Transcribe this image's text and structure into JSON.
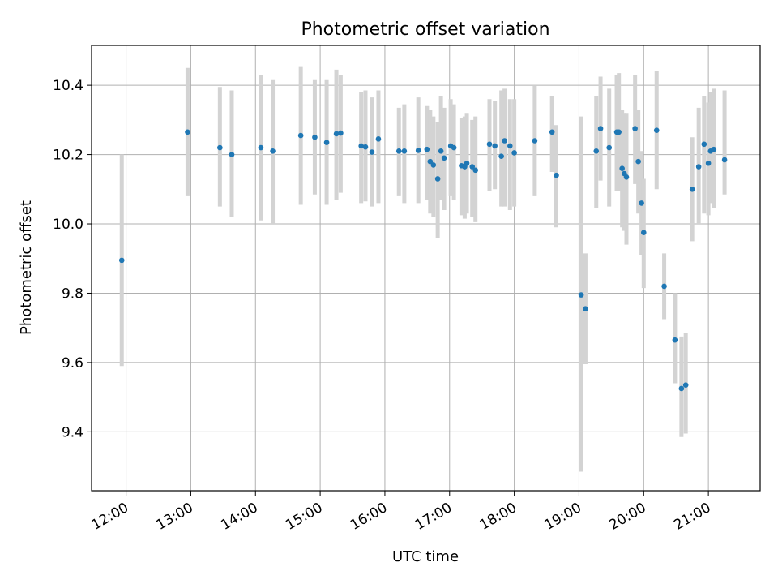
{
  "chart_data": {
    "type": "scatter",
    "title": "Photometric offset variation",
    "xlabel": "UTC time",
    "ylabel": "Photometric offset",
    "xlim": [
      "11:28",
      "21:48"
    ],
    "ylim": [
      9.23,
      10.515
    ],
    "x_ticks": [
      "12:00",
      "13:00",
      "14:00",
      "15:00",
      "16:00",
      "17:00",
      "18:00",
      "19:00",
      "20:00",
      "21:00"
    ],
    "y_ticks": [
      9.4,
      9.6,
      9.8,
      10.0,
      10.2,
      10.4
    ],
    "y_tick_labels": [
      "9.4",
      "9.6",
      "9.8",
      "10.0",
      "10.2",
      "10.4"
    ],
    "grid": true,
    "colors": {
      "marker": "#1f77b4",
      "errorbar": "#d3d3d3",
      "grid": "#b0b0b0"
    },
    "series": [
      {
        "marker": "point",
        "error_bars": "vertical",
        "x": [
          "11:56",
          "12:57",
          "13:27",
          "13:38",
          "14:05",
          "14:16",
          "14:42",
          "14:55",
          "15:06",
          "15:15",
          "15:19",
          "15:38",
          "15:42",
          "15:48",
          "15:54",
          "16:13",
          "16:18",
          "16:31",
          "16:39",
          "16:42",
          "16:45",
          "16:49",
          "16:52",
          "16:55",
          "17:01",
          "17:04",
          "17:11",
          "17:14",
          "17:16",
          "17:21",
          "17:24",
          "17:37",
          "17:42",
          "17:48",
          "17:51",
          "17:56",
          "18:00",
          "18:19",
          "18:35",
          "18:39",
          "19:02",
          "19:06",
          "19:16",
          "19:20",
          "19:28",
          "19:35",
          "19:37",
          "19:40",
          "19:42",
          "19:44",
          "19:52",
          "19:55",
          "19:58",
          "20:00",
          "20:12",
          "20:19",
          "20:29",
          "20:35",
          "20:39",
          "20:45",
          "20:51",
          "20:56",
          "21:00",
          "21:02",
          "21:05",
          "21:15"
        ],
        "y": [
          9.895,
          10.265,
          10.22,
          10.2,
          10.22,
          10.21,
          10.255,
          10.25,
          10.235,
          10.26,
          10.262,
          10.225,
          10.222,
          10.207,
          10.245,
          10.21,
          10.21,
          10.212,
          10.215,
          10.18,
          10.17,
          10.13,
          10.21,
          10.19,
          10.225,
          10.22,
          10.168,
          10.165,
          10.175,
          10.165,
          10.155,
          10.23,
          10.225,
          10.195,
          10.24,
          10.225,
          10.205,
          10.24,
          10.265,
          10.14,
          9.795,
          9.755,
          10.21,
          10.275,
          10.22,
          10.265,
          10.265,
          10.16,
          10.145,
          10.135,
          10.275,
          10.18,
          10.06,
          9.975,
          10.27,
          9.82,
          9.665,
          9.525,
          9.535,
          10.1,
          10.165,
          10.23,
          10.175,
          10.21,
          10.215,
          10.185
        ],
        "y_low": [
          9.59,
          10.08,
          10.05,
          10.02,
          10.01,
          10.0,
          10.055,
          10.085,
          10.055,
          10.07,
          10.09,
          10.06,
          10.065,
          10.05,
          10.06,
          10.08,
          10.06,
          10.06,
          10.07,
          10.03,
          10.02,
          9.96,
          10.07,
          10.04,
          10.08,
          10.07,
          10.025,
          10.015,
          10.03,
          10.02,
          10.005,
          10.095,
          10.1,
          10.05,
          10.05,
          10.04,
          10.05,
          10.08,
          10.15,
          9.99,
          9.285,
          9.595,
          10.045,
          10.125,
          10.05,
          10.095,
          10.095,
          9.99,
          9.98,
          9.94,
          10.115,
          10.03,
          9.91,
          9.815,
          10.1,
          9.725,
          9.54,
          9.385,
          9.395,
          9.95,
          10.0,
          10.03,
          10.025,
          10.06,
          10.045,
          10.085
        ],
        "y_high": [
          10.2,
          10.45,
          10.395,
          10.385,
          10.43,
          10.415,
          10.455,
          10.415,
          10.415,
          10.445,
          10.43,
          10.38,
          10.385,
          10.365,
          10.385,
          10.335,
          10.345,
          10.365,
          10.34,
          10.33,
          10.31,
          10.295,
          10.37,
          10.335,
          10.36,
          10.345,
          10.305,
          10.31,
          10.32,
          10.3,
          10.31,
          10.36,
          10.355,
          10.385,
          10.39,
          10.36,
          10.36,
          10.4,
          10.37,
          10.285,
          10.31,
          9.915,
          10.37,
          10.425,
          10.39,
          10.43,
          10.435,
          10.33,
          10.32,
          10.32,
          10.43,
          10.33,
          10.21,
          10.13,
          10.44,
          9.915,
          9.8,
          9.675,
          9.685,
          10.25,
          10.335,
          10.37,
          10.35,
          10.38,
          10.39,
          10.385
        ]
      }
    ]
  }
}
